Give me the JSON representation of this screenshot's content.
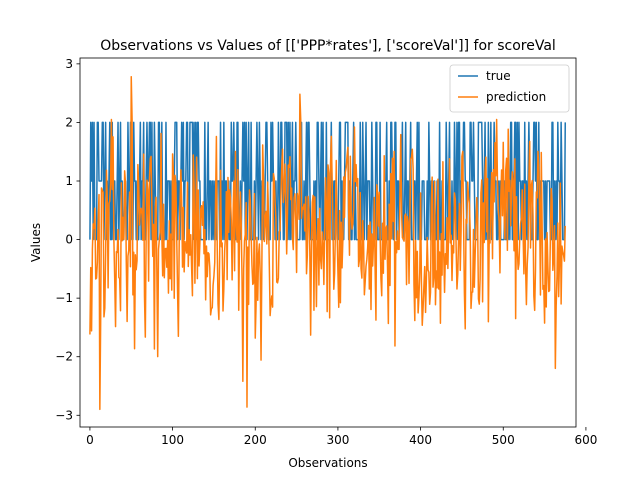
{
  "chart_data": {
    "type": "line",
    "title": "Observations vs Values of [['PPP*rates'], ['scoreVal']] for scoreVal",
    "xlabel": "Observations",
    "ylabel": "Values",
    "xlim": [
      -12,
      588
    ],
    "ylim": [
      -3.2,
      3.1
    ],
    "xticks": [
      0,
      100,
      200,
      300,
      400,
      500,
      600
    ],
    "yticks": [
      -3,
      -2,
      -1,
      0,
      1,
      2,
      3
    ],
    "grid": false,
    "legend_position": "top-right",
    "series": [
      {
        "name": "true",
        "color": "#1f77b4",
        "generator": "discrete",
        "count": 576,
        "levels": [
          0,
          1,
          2
        ],
        "seed": 7
      },
      {
        "name": "prediction",
        "color": "#ff7f0e",
        "generator": "continuous",
        "count": 576,
        "seed": 13,
        "peaks": [
          {
            "x": 0,
            "y": -1.62
          },
          {
            "x": 12,
            "y": -2.9
          },
          {
            "x": 50,
            "y": 2.78
          },
          {
            "x": 185,
            "y": -2.42
          },
          {
            "x": 190,
            "y": -2.86
          },
          {
            "x": 254,
            "y": 2.48
          },
          {
            "x": 563,
            "y": -2.2
          },
          {
            "x": 570,
            "y": -1.1
          }
        ]
      }
    ]
  }
}
